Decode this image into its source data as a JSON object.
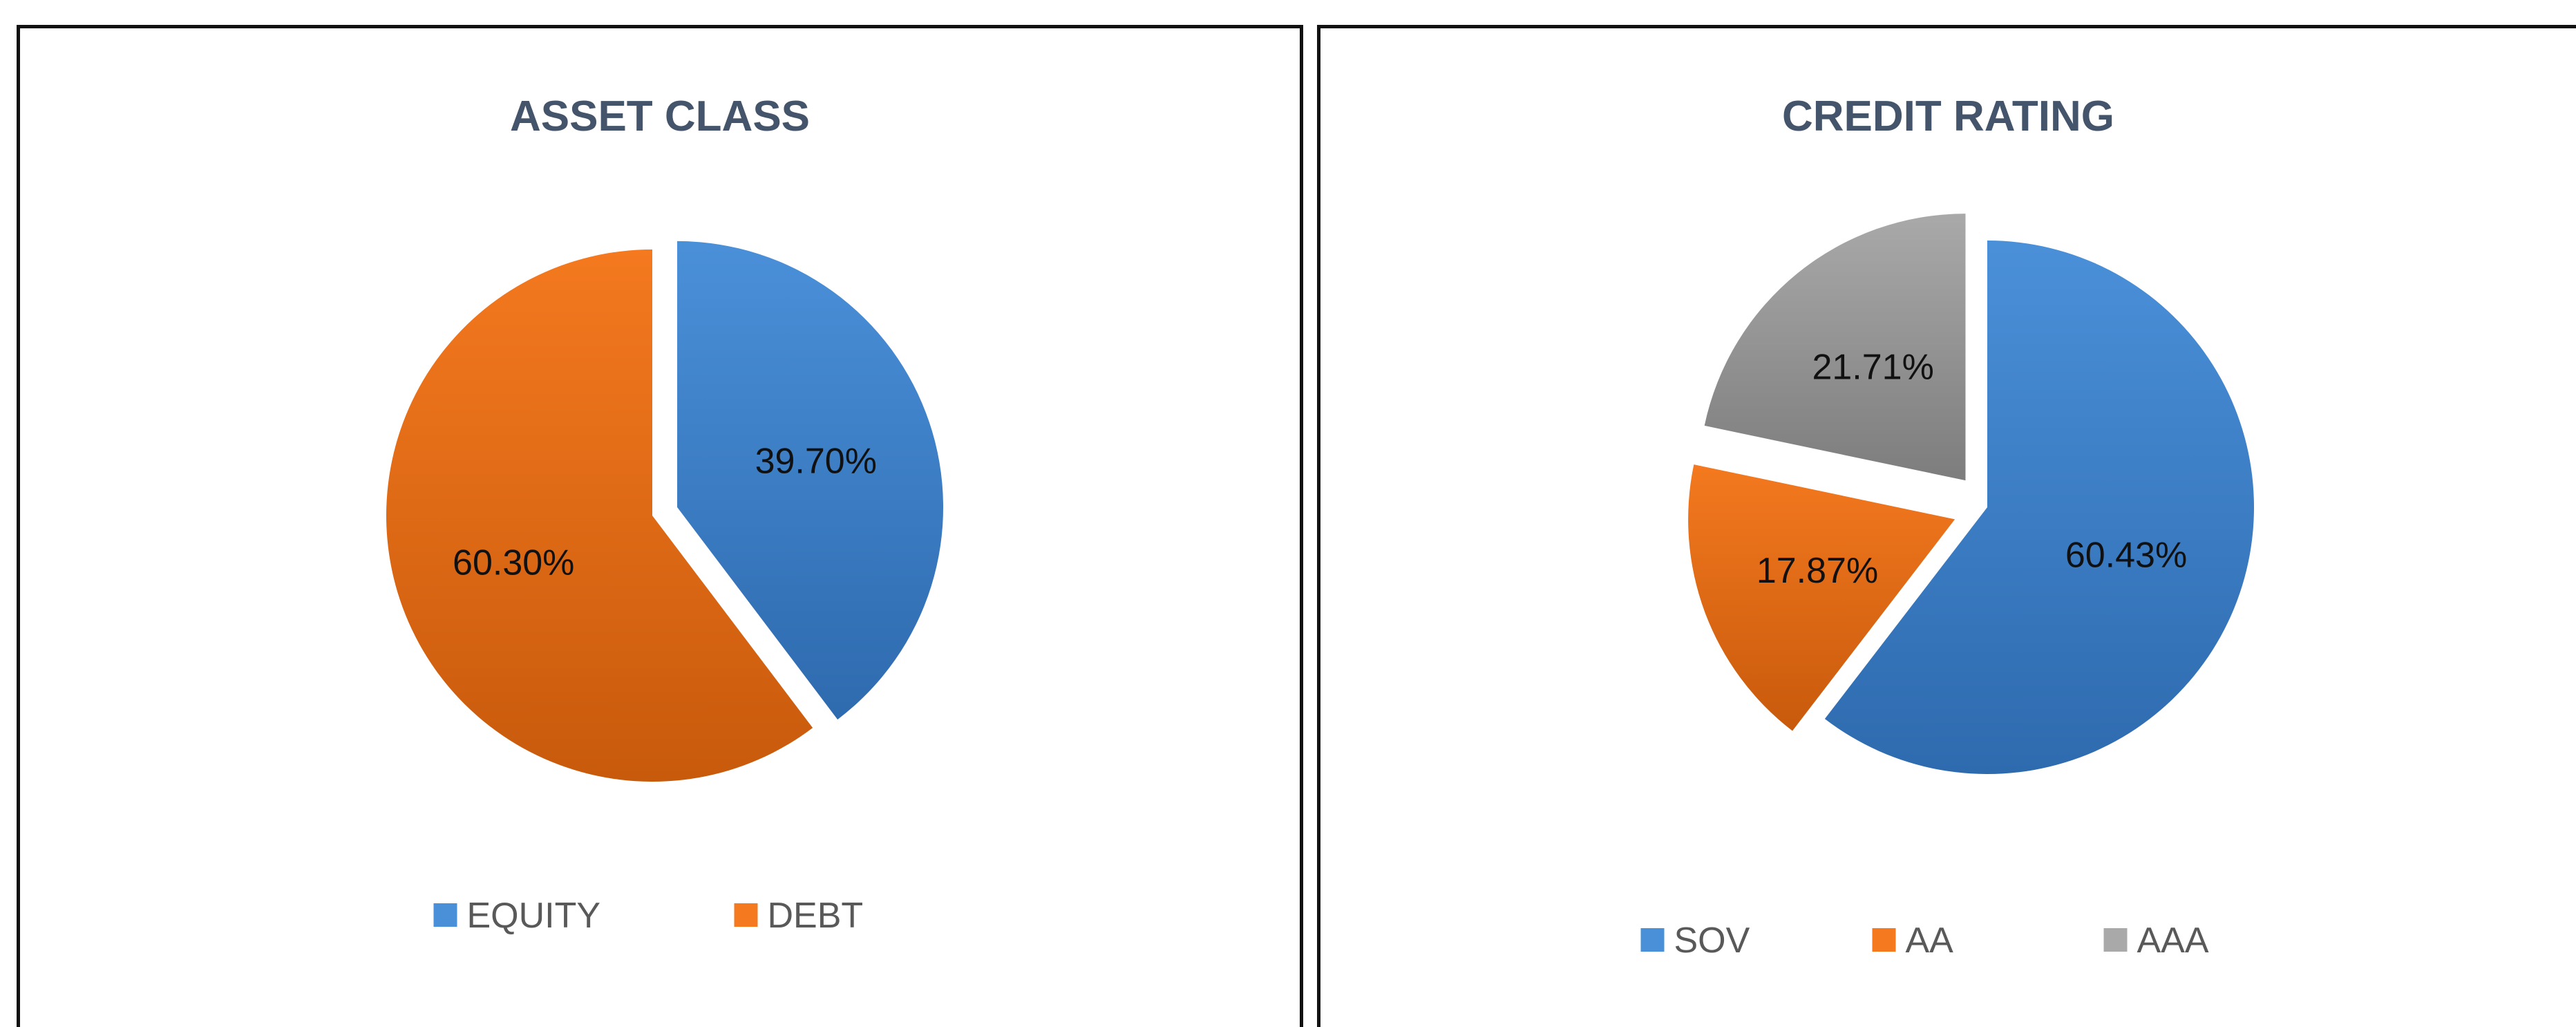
{
  "chart_data": [
    {
      "type": "pie",
      "title": "ASSET CLASS",
      "slices": [
        {
          "name": "EQUITY",
          "value": 39.7,
          "label": "39.70%",
          "color": "#4a90d9",
          "color_dark": "#2e6aae",
          "exploded": true
        },
        {
          "name": "DEBT",
          "value": 60.3,
          "label": "60.30%",
          "color": "#f4791f",
          "color_dark": "#c85a0c",
          "exploded": false
        }
      ],
      "start_angle_deg": 0,
      "direction": "clockwise",
      "legend": {
        "position": "bottom",
        "entries": [
          "EQUITY",
          "DEBT"
        ]
      }
    },
    {
      "type": "pie",
      "title": "CREDIT RATING",
      "slices": [
        {
          "name": "SOV",
          "value": 60.43,
          "label": "60.43%",
          "color": "#4a90d9",
          "color_dark": "#2e6aae",
          "exploded": false
        },
        {
          "name": "AA",
          "value": 17.87,
          "label": "17.87%",
          "color": "#f4791f",
          "color_dark": "#c85a0c",
          "exploded": true
        },
        {
          "name": "AAA",
          "value": 21.71,
          "label": "21.71%",
          "color": "#a9a9a9",
          "color_dark": "#7d7d7d",
          "exploded": true
        }
      ],
      "start_angle_deg": 0,
      "direction": "clockwise",
      "legend": {
        "position": "bottom",
        "entries": [
          "SOV",
          "AA",
          "AAA"
        ]
      }
    }
  ]
}
